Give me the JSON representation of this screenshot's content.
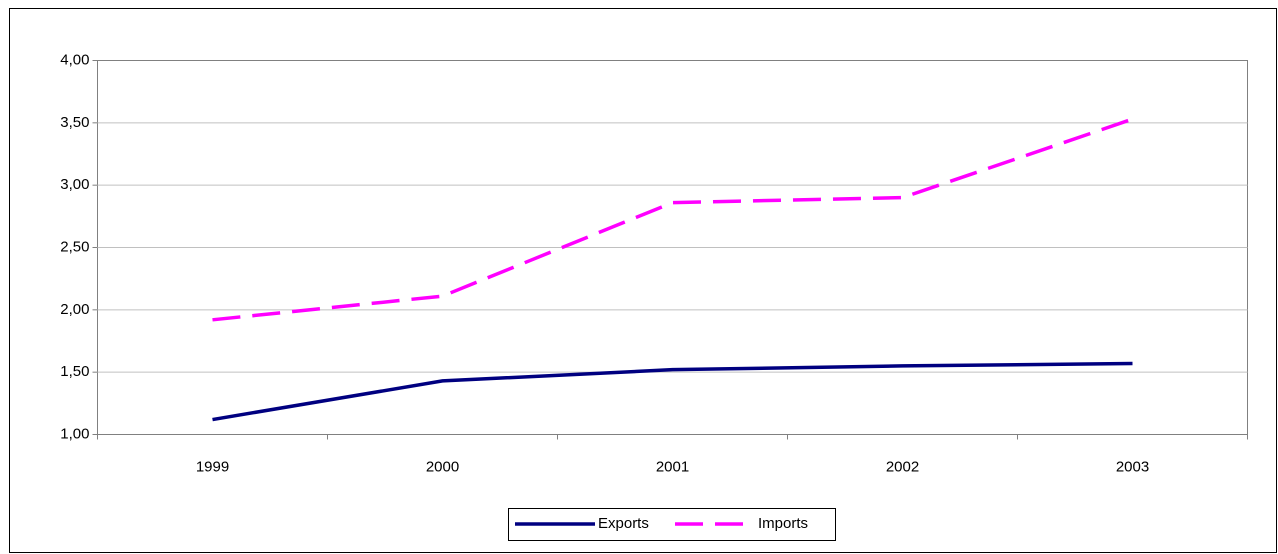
{
  "chart_data": {
    "type": "line",
    "categories": [
      "1999",
      "2000",
      "2001",
      "2002",
      "2003"
    ],
    "series": [
      {
        "name": "Exports",
        "color": "#000080",
        "dash": false,
        "values": [
          1.12,
          1.43,
          1.52,
          1.55,
          1.57
        ]
      },
      {
        "name": "Imports",
        "color": "#ff00ff",
        "dash": true,
        "values": [
          1.92,
          2.11,
          2.86,
          2.9,
          3.53
        ]
      }
    ],
    "ylim": [
      1,
      4
    ],
    "yticks": [
      {
        "value": 1,
        "label": "1,00"
      },
      {
        "value": 1.5,
        "label": "1,50"
      },
      {
        "value": 2,
        "label": "2,00"
      },
      {
        "value": 2.5,
        "label": "2,50"
      },
      {
        "value": 3,
        "label": "3,00"
      },
      {
        "value": 3.5,
        "label": "3,50"
      },
      {
        "value": 4,
        "label": "4,00"
      }
    ],
    "grid": true,
    "legend": "bottom"
  }
}
